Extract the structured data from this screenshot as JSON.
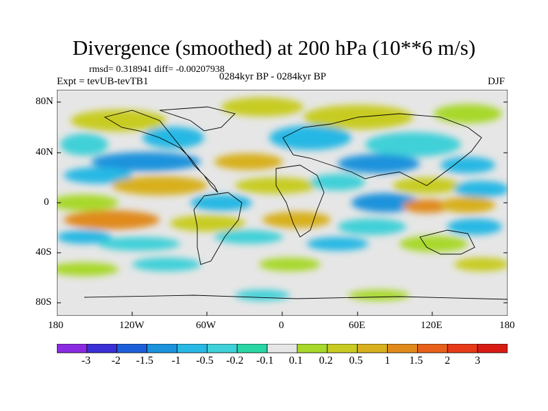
{
  "title": "Divergence (smoothed) at 200 hPa (10**6 m/s)",
  "stats_text": "rmsd= 0.318941 diff= -0.00207938",
  "experiment": "Expt = tevUB-tevTB1",
  "period": "0284kyr BP - 0284kyr BP",
  "season": "DJF",
  "lat_labels": [
    "80N",
    "40N",
    "0",
    "40S",
    "80S"
  ],
  "lon_labels": [
    "180",
    "120W",
    "60W",
    "0",
    "60E",
    "120E",
    "180"
  ],
  "colorbar": {
    "labels": [
      "-3",
      "-2",
      "-1.5",
      "-1",
      "-0.5",
      "-0.2",
      "-0.1",
      "0.1",
      "0.2",
      "0.5",
      "1",
      "1.5",
      "2",
      "3"
    ],
    "colors": [
      "#8a2be2",
      "#3b2fd6",
      "#1c5fd8",
      "#1a93dc",
      "#28b8e4",
      "#3fd0d8",
      "#29d6a4",
      "#e6e6e6",
      "#a8d82a",
      "#c8cc22",
      "#d8b01e",
      "#e08a1c",
      "#e6601a",
      "#e63a18",
      "#d81c14"
    ]
  },
  "map_colors": {
    "ocean_background": "#e6e6e6",
    "coastline": "#000000"
  }
}
